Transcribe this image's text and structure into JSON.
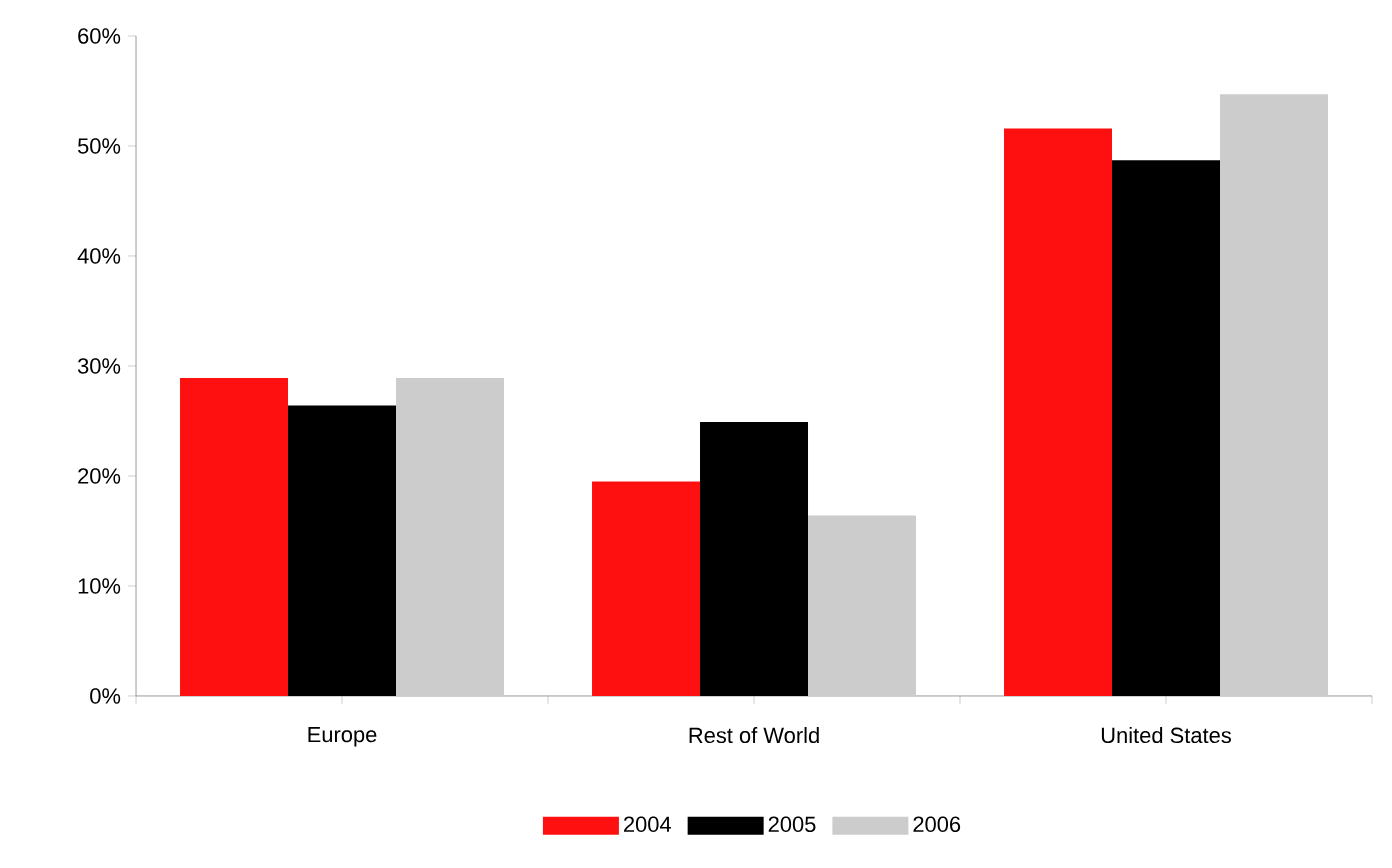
{
  "chart_data": {
    "type": "bar",
    "categories": [
      "Europe",
      "Rest of World",
      "United States"
    ],
    "series": [
      {
        "name": "2004",
        "color": "#ff1010",
        "values": [
          28.9,
          19.5,
          51.6
        ]
      },
      {
        "name": "2005",
        "color": "#000000",
        "values": [
          26.4,
          24.9,
          48.7
        ]
      },
      {
        "name": "2006",
        "color": "#cccccc",
        "values": [
          28.9,
          16.4,
          54.7
        ]
      }
    ],
    "ylim": [
      0,
      60
    ],
    "yticks": [
      {
        "value": 0,
        "label": "0%"
      },
      {
        "value": 10,
        "label": "10%"
      },
      {
        "value": 20,
        "label": "20%"
      },
      {
        "value": 30,
        "label": "30%"
      },
      {
        "value": 40,
        "label": "40%"
      },
      {
        "value": 50,
        "label": "50%"
      },
      {
        "value": 60,
        "label": "60%"
      }
    ],
    "grid": false,
    "legend": "bottom"
  }
}
